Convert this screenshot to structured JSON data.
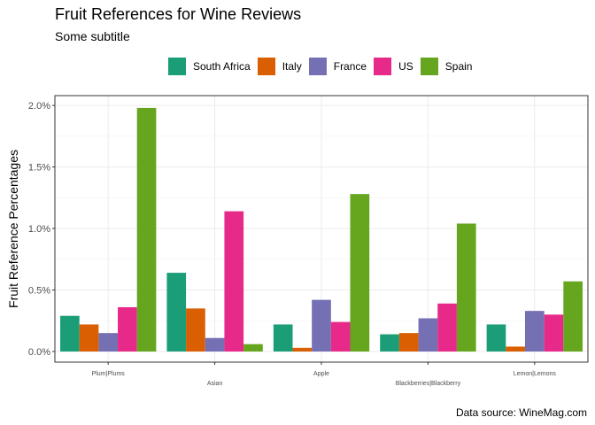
{
  "chart_data": {
    "type": "bar",
    "title": "Fruit References for Wine Reviews",
    "subtitle": "Some subtitle",
    "caption": "Data source: WineMag.com",
    "xlabel": "",
    "ylabel": "Fruit Reference Percentages",
    "ylim": [
      0,
      0.0208
    ],
    "yticks": [
      {
        "value": 0,
        "label": "0.0%"
      },
      {
        "value": 0.005,
        "label": "0.5%"
      },
      {
        "value": 0.01,
        "label": "1.0%"
      },
      {
        "value": 0.015,
        "label": "1.5%"
      },
      {
        "value": 0.02,
        "label": "2.0%"
      }
    ],
    "grid": true,
    "legend_position": "top",
    "categories": [
      "Plum|Plums",
      "Asian",
      "Apple",
      "Blackberries|Blackberry",
      "Lemon|Lemons"
    ],
    "series": [
      {
        "name": "South Africa",
        "color": "#1B9E77",
        "values": [
          0.0029,
          0.0064,
          0.0022,
          0.0014,
          0.0022
        ]
      },
      {
        "name": "Italy",
        "color": "#D95F02",
        "values": [
          0.0022,
          0.0035,
          0.0003,
          0.0015,
          0.0004
        ]
      },
      {
        "name": "France",
        "color": "#7570B3",
        "values": [
          0.0015,
          0.0011,
          0.0042,
          0.0027,
          0.0033
        ]
      },
      {
        "name": "US",
        "color": "#E7298A",
        "values": [
          0.0036,
          0.0114,
          0.0024,
          0.0039,
          0.003
        ]
      },
      {
        "name": "Spain",
        "color": "#66A61E",
        "values": [
          0.0198,
          0.0006,
          0.0128,
          0.0104,
          0.0057
        ]
      }
    ]
  }
}
